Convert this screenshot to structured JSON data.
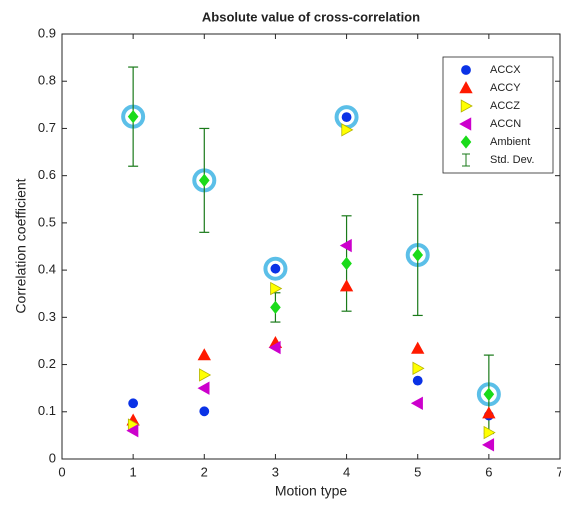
{
  "chart_data": {
    "type": "scatter",
    "title": "Absolute value of cross-correlation",
    "xlabel": "Motion type",
    "ylabel": "Correlation coefficient",
    "xlim": [
      0,
      7
    ],
    "xticks": [
      0,
      1,
      2,
      3,
      4,
      5,
      6,
      7
    ],
    "ylim": [
      0,
      0.9
    ],
    "yticks": [
      0,
      0.1,
      0.2,
      0.3,
      0.4,
      0.5,
      0.6,
      0.7,
      0.8,
      0.9
    ],
    "x": [
      1,
      2,
      3,
      4,
      5,
      6
    ],
    "series": [
      {
        "name": "ACCX",
        "color": "#0a32e6",
        "marker": "circle",
        "values": [
          0.118,
          0.101,
          0.403,
          0.724,
          0.166,
          0.092
        ]
      },
      {
        "name": "ACCY",
        "color": "#ff1a00",
        "marker": "triangle-up",
        "values": [
          0.082,
          0.22,
          0.246,
          0.366,
          0.234,
          0.097
        ]
      },
      {
        "name": "ACCZ",
        "color": "#ffff00",
        "marker": "triangle-right",
        "values": [
          0.072,
          0.178,
          0.361,
          0.697,
          0.192,
          0.056
        ]
      },
      {
        "name": "ACCN",
        "color": "#cc00cc",
        "marker": "triangle-left",
        "values": [
          0.06,
          0.15,
          0.236,
          0.452,
          0.118,
          0.03
        ]
      },
      {
        "name": "Ambient",
        "color": "#1adb1a",
        "marker": "diamond",
        "values": [
          0.725,
          0.59,
          0.321,
          0.414,
          0.432,
          0.137
        ]
      }
    ],
    "error_bars": {
      "name": "Std. Dev.",
      "color": "#1a7a1a",
      "series": 4,
      "values": [
        0.105,
        0.11,
        0.031,
        0.101,
        0.128,
        0.083
      ]
    },
    "highlight_color": "#5bbfe8",
    "legend": "upper-right"
  }
}
